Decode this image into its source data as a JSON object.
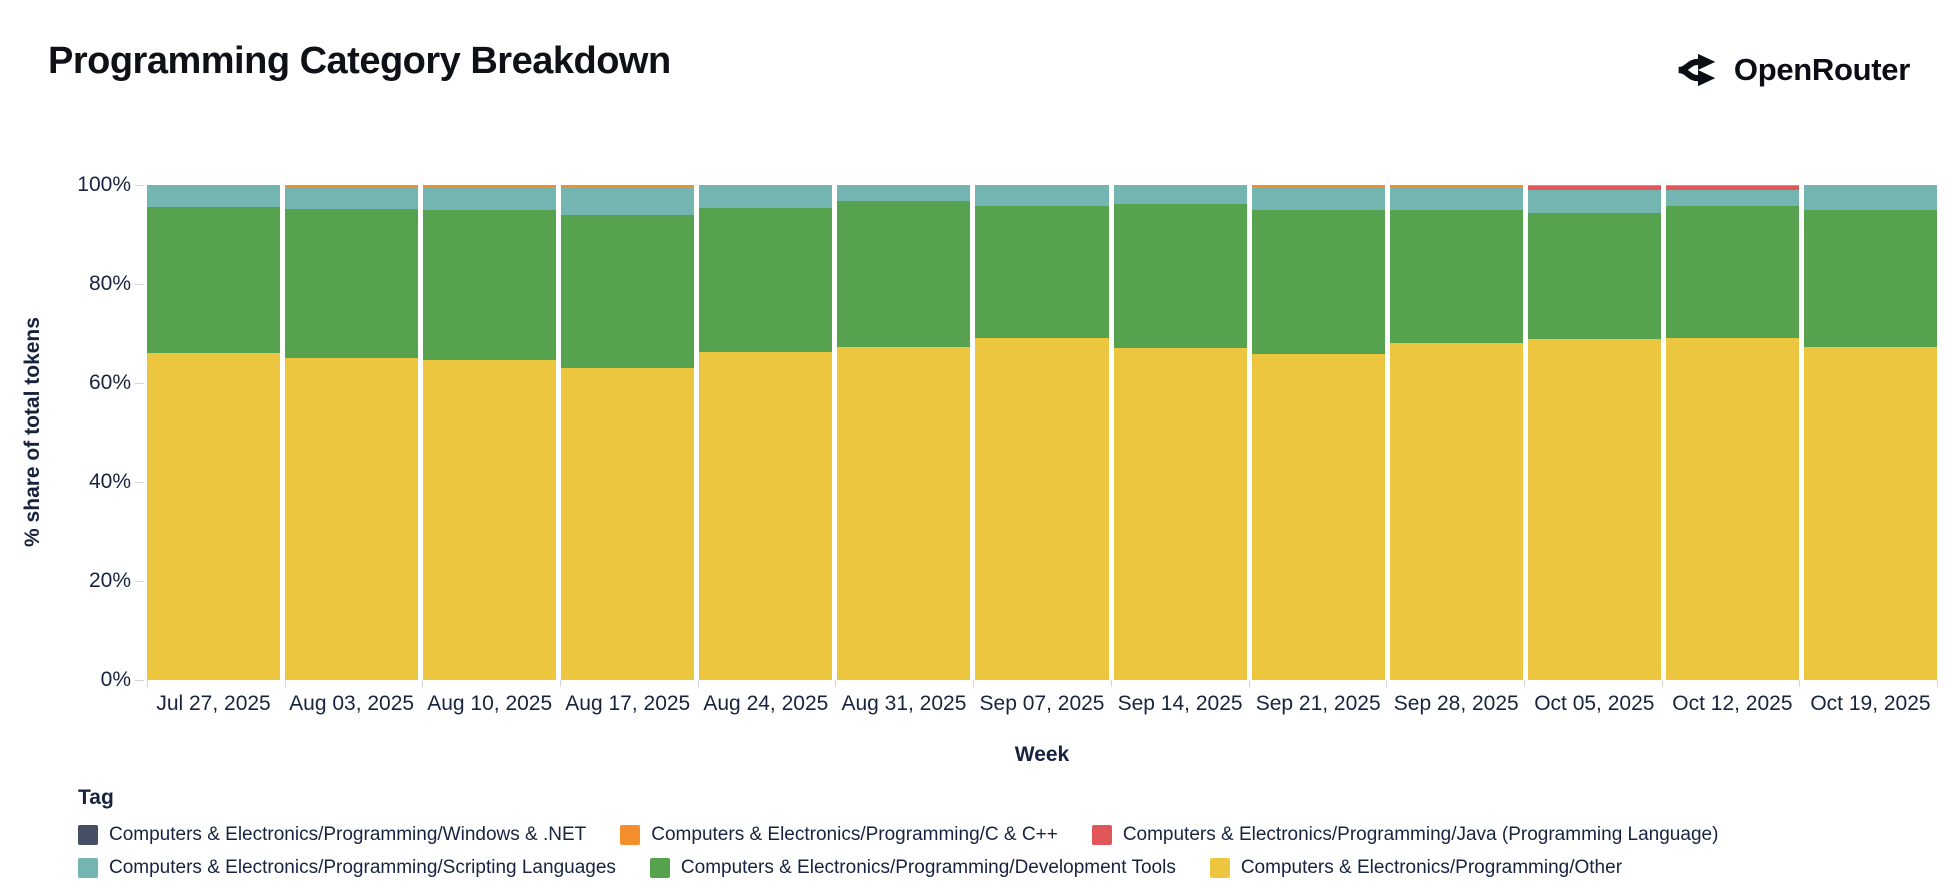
{
  "header": {
    "title": "Programming Category Breakdown",
    "brand": "OpenRouter"
  },
  "chart_data": {
    "type": "bar",
    "variant": "stacked-100-percent",
    "title": "Programming Category Breakdown",
    "xlabel": "Week",
    "ylabel": "% share of total tokens",
    "ylim": [
      0,
      100
    ],
    "y_ticks": [
      "0%",
      "20%",
      "40%",
      "60%",
      "80%",
      "100%"
    ],
    "grid": false,
    "legend_title": "Tag",
    "legend_position": "bottom",
    "categories": [
      "Jul 27, 2025",
      "Aug 03, 2025",
      "Aug 10, 2025",
      "Aug 17, 2025",
      "Aug 24, 2025",
      "Aug 31, 2025",
      "Sep 07, 2025",
      "Sep 14, 2025",
      "Sep 21, 2025",
      "Sep 28, 2025",
      "Oct 05, 2025",
      "Oct 12, 2025",
      "Oct 19, 2025"
    ],
    "stack_order": "bottom-to-top",
    "series": [
      {
        "name": "Computers & Electronics/Programming/Other",
        "color": "#EBC63E",
        "values": [
          66.1,
          65.1,
          64.6,
          63.0,
          66.3,
          67.3,
          69.1,
          67.1,
          65.9,
          68.1,
          68.9,
          69.1,
          67.3
        ]
      },
      {
        "name": "Computers & Electronics/Programming/Development Tools",
        "color": "#57A24F",
        "values": [
          29.5,
          30.1,
          30.3,
          30.9,
          29.1,
          29.5,
          26.7,
          29.1,
          29.1,
          26.9,
          25.4,
          26.6,
          27.7
        ]
      },
      {
        "name": "Computers & Electronics/Programming/Scripting Languages",
        "color": "#74B5B1",
        "values": [
          4.3,
          4.4,
          4.7,
          5.6,
          4.4,
          3.1,
          4.1,
          3.6,
          4.6,
          4.6,
          4.7,
          3.2,
          4.9
        ]
      },
      {
        "name": "Computers & Electronics/Programming/Java (Programming Language)",
        "color": "#E15759",
        "values": [
          0,
          0,
          0,
          0,
          0,
          0,
          0,
          0,
          0,
          0,
          0.8,
          0.9,
          0
        ]
      },
      {
        "name": "Computers & Electronics/Programming/C & C++",
        "color": "#F28E2B",
        "values": [
          0.1,
          0.4,
          0.4,
          0.5,
          0.2,
          0.1,
          0.1,
          0.2,
          0.4,
          0.4,
          0.2,
          0.2,
          0.1
        ]
      },
      {
        "name": "Computers & Electronics/Programming/Windows & .NET",
        "color": "#454F63",
        "pattern": "dots",
        "values": [
          0,
          0,
          0,
          0,
          0,
          0,
          0,
          0,
          0,
          0,
          0,
          0,
          0
        ]
      }
    ]
  },
  "legend": {
    "title": "Tag",
    "rows": [
      [
        {
          "label": "Computers & Electronics/Programming/Windows & .NET",
          "color": "#454F63",
          "pattern": "dots"
        },
        {
          "label": "Computers & Electronics/Programming/C & C++",
          "color": "#F28E2B"
        },
        {
          "label": "Computers & Electronics/Programming/Java (Programming Language)",
          "color": "#E15759"
        }
      ],
      [
        {
          "label": "Computers & Electronics/Programming/Scripting Languages",
          "color": "#74B5B1"
        },
        {
          "label": "Computers & Electronics/Programming/Development Tools",
          "color": "#57A24F"
        },
        {
          "label": "Computers & Electronics/Programming/Other",
          "color": "#EBC63E"
        }
      ]
    ]
  }
}
